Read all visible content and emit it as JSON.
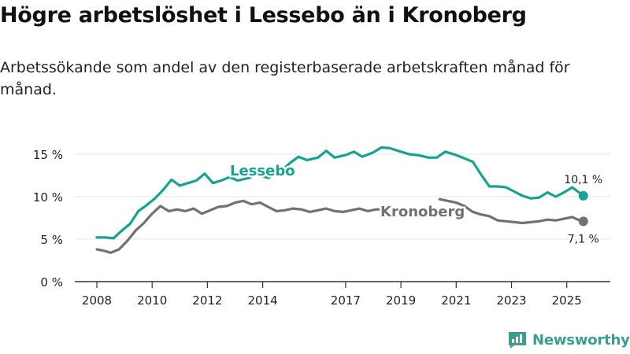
{
  "title": "Högre arbetslöshet i Lessebo än i Kronoberg",
  "subtitle": "Arbetssökande som andel av den registerbaserade arbetskraften månad för månad.",
  "brand": "Newsworthy",
  "colors": {
    "lessebo": "#16a394",
    "kronoberg": "#737073",
    "axis": "#333333",
    "grid": "#e6e6e6",
    "brand": "#3a9e8e"
  },
  "chart_data": {
    "type": "line",
    "title": "Högre arbetslöshet i Lessebo än i Kronoberg",
    "xlabel": "",
    "ylabel": "",
    "xlim": [
      2007.8,
      2026.0
    ],
    "ylim": [
      0,
      15
    ],
    "y_ticks": [
      {
        "value": 0,
        "label": "0 %"
      },
      {
        "value": 5,
        "label": "5 %"
      },
      {
        "value": 10,
        "label": "10 %"
      },
      {
        "value": 15,
        "label": "15 %"
      }
    ],
    "x_ticks": [
      {
        "value": 2008,
        "label": "2008"
      },
      {
        "value": 2010,
        "label": "2010"
      },
      {
        "value": 2012,
        "label": "2012"
      },
      {
        "value": 2014,
        "label": "2014"
      },
      {
        "value": 2017,
        "label": "2017"
      },
      {
        "value": 2019,
        "label": "2019"
      },
      {
        "value": 2021,
        "label": "2021"
      },
      {
        "value": 2023,
        "label": "2023"
      },
      {
        "value": 2025,
        "label": "2025"
      }
    ],
    "series": [
      {
        "name": "Lessebo",
        "end_label": "10,1 %",
        "points": [
          [
            2008.0,
            5.2
          ],
          [
            2008.3,
            5.2
          ],
          [
            2008.6,
            5.1
          ],
          [
            2008.9,
            6.0
          ],
          [
            2009.2,
            6.8
          ],
          [
            2009.5,
            8.3
          ],
          [
            2009.8,
            9.0
          ],
          [
            2010.1,
            9.8
          ],
          [
            2010.4,
            10.8
          ],
          [
            2010.7,
            12.0
          ],
          [
            2011.0,
            11.3
          ],
          [
            2011.3,
            11.6
          ],
          [
            2011.6,
            11.9
          ],
          [
            2011.9,
            12.7
          ],
          [
            2012.2,
            11.6
          ],
          [
            2012.5,
            11.9
          ],
          [
            2012.8,
            12.3
          ],
          [
            2013.1,
            11.9
          ],
          [
            2013.5,
            12.2
          ],
          [
            2013.8,
            12.6
          ],
          [
            2014.2,
            12.2
          ],
          [
            2014.6,
            12.8
          ],
          [
            2015.0,
            14.0
          ],
          [
            2015.3,
            14.7
          ],
          [
            2015.6,
            14.3
          ],
          [
            2016.0,
            14.6
          ],
          [
            2016.3,
            15.4
          ],
          [
            2016.6,
            14.6
          ],
          [
            2017.0,
            14.9
          ],
          [
            2017.3,
            15.3
          ],
          [
            2017.6,
            14.7
          ],
          [
            2018.0,
            15.2
          ],
          [
            2018.3,
            15.8
          ],
          [
            2018.6,
            15.7
          ],
          [
            2019.0,
            15.3
          ],
          [
            2019.3,
            15.0
          ],
          [
            2019.6,
            14.9
          ],
          [
            2020.0,
            14.6
          ],
          [
            2020.3,
            14.6
          ],
          [
            2020.6,
            15.3
          ],
          [
            2021.0,
            14.9
          ],
          [
            2021.3,
            14.5
          ],
          [
            2021.6,
            14.1
          ],
          [
            2021.9,
            12.6
          ],
          [
            2022.2,
            11.2
          ],
          [
            2022.5,
            11.2
          ],
          [
            2022.8,
            11.1
          ],
          [
            2023.1,
            10.6
          ],
          [
            2023.4,
            10.1
          ],
          [
            2023.7,
            9.8
          ],
          [
            2024.0,
            9.9
          ],
          [
            2024.3,
            10.5
          ],
          [
            2024.6,
            10.0
          ],
          [
            2024.9,
            10.5
          ],
          [
            2025.2,
            11.1
          ],
          [
            2025.4,
            10.6
          ],
          [
            2025.6,
            10.1
          ]
        ]
      },
      {
        "name": "Kronoberg",
        "end_label": "7,1 %",
        "points": [
          [
            2008.0,
            3.8
          ],
          [
            2008.3,
            3.6
          ],
          [
            2008.5,
            3.4
          ],
          [
            2008.8,
            3.8
          ],
          [
            2009.1,
            4.8
          ],
          [
            2009.4,
            6.0
          ],
          [
            2009.7,
            6.9
          ],
          [
            2010.0,
            8.0
          ],
          [
            2010.3,
            8.9
          ],
          [
            2010.6,
            8.3
          ],
          [
            2010.9,
            8.5
          ],
          [
            2011.2,
            8.3
          ],
          [
            2011.5,
            8.6
          ],
          [
            2011.8,
            8.0
          ],
          [
            2012.1,
            8.4
          ],
          [
            2012.4,
            8.8
          ],
          [
            2012.7,
            8.9
          ],
          [
            2013.0,
            9.3
          ],
          [
            2013.3,
            9.5
          ],
          [
            2013.6,
            9.1
          ],
          [
            2013.9,
            9.3
          ],
          [
            2014.2,
            8.8
          ],
          [
            2014.5,
            8.3
          ],
          [
            2014.8,
            8.4
          ],
          [
            2015.1,
            8.6
          ],
          [
            2015.4,
            8.5
          ],
          [
            2015.7,
            8.2
          ],
          [
            2016.0,
            8.4
          ],
          [
            2016.3,
            8.6
          ],
          [
            2016.6,
            8.3
          ],
          [
            2016.9,
            8.2
          ],
          [
            2017.2,
            8.4
          ],
          [
            2017.5,
            8.6
          ],
          [
            2017.8,
            8.3
          ],
          [
            2018.1,
            8.5
          ],
          [
            2018.4,
            8.5
          ],
          [
            2020.4,
            9.7
          ],
          [
            2020.7,
            9.5
          ],
          [
            2021.0,
            9.3
          ],
          [
            2021.3,
            8.9
          ],
          [
            2021.6,
            8.2
          ],
          [
            2021.9,
            7.9
          ],
          [
            2022.2,
            7.7
          ],
          [
            2022.5,
            7.2
          ],
          [
            2022.8,
            7.1
          ],
          [
            2023.1,
            7.0
          ],
          [
            2023.4,
            6.9
          ],
          [
            2023.7,
            7.0
          ],
          [
            2024.0,
            7.1
          ],
          [
            2024.3,
            7.3
          ],
          [
            2024.6,
            7.2
          ],
          [
            2024.9,
            7.4
          ],
          [
            2025.2,
            7.6
          ],
          [
            2025.4,
            7.3
          ],
          [
            2025.6,
            7.1
          ]
        ]
      }
    ]
  }
}
